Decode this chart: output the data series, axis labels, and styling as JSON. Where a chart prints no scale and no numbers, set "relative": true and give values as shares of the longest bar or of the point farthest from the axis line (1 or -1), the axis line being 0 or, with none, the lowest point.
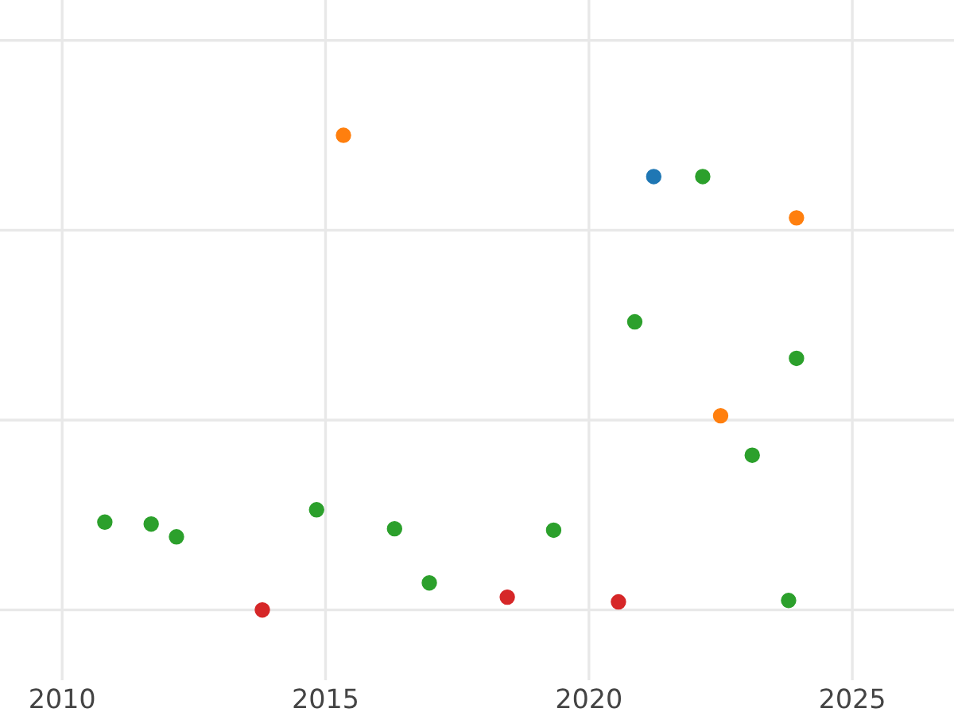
{
  "chart_data": {
    "type": "scatter",
    "relative": true,
    "grid": true,
    "marker": "circle",
    "xlim": [
      2008.82,
      2026.93
    ],
    "xticks": [
      2010,
      2015,
      2020,
      2025
    ],
    "tick_labels": "x",
    "series": [
      {
        "color": "#1f77b4",
        "x": [
          2021.23
        ],
        "values": [
          0.913
        ]
      },
      {
        "color": "#ff7f0e",
        "x": [
          2015.34,
          2023.94,
          2022.5
        ],
        "values": [
          1.0,
          0.826,
          0.409
        ]
      },
      {
        "color": "#2ca02c",
        "x": [
          2010.81,
          2011.69,
          2012.17,
          2014.83,
          2016.31,
          2016.97,
          2019.33,
          2020.87,
          2022.16,
          2023.1,
          2023.79,
          2023.94
        ],
        "values": [
          0.185,
          0.181,
          0.154,
          0.211,
          0.171,
          0.057,
          0.168,
          0.607,
          0.913,
          0.326,
          0.02,
          0.53
        ]
      },
      {
        "color": "#d62728",
        "x": [
          2013.8,
          2018.45,
          2020.56
        ],
        "values": [
          0.0,
          0.027,
          0.017
        ]
      }
    ]
  }
}
